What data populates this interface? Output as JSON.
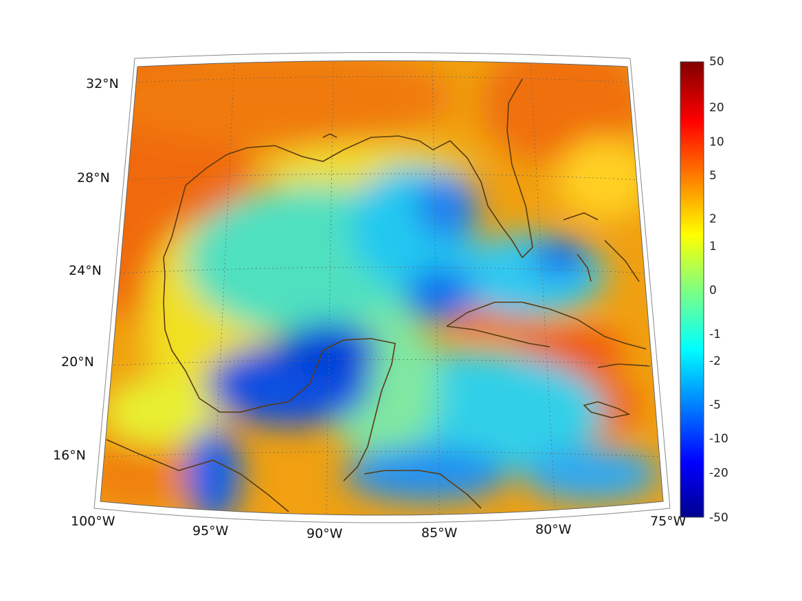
{
  "map": {
    "projection": "conic",
    "lon_range": [
      -100,
      -75
    ],
    "lat_range": [
      14,
      33
    ],
    "lon_ticks": [
      {
        "value": -100,
        "label": "100°W"
      },
      {
        "value": -95,
        "label": "95°W"
      },
      {
        "value": -90,
        "label": "90°W"
      },
      {
        "value": -85,
        "label": "85°W"
      },
      {
        "value": -80,
        "label": "80°W"
      },
      {
        "value": -75,
        "label": "75°W"
      }
    ],
    "lat_ticks": [
      {
        "value": 32,
        "label": "32°N"
      },
      {
        "value": 28,
        "label": "28°N"
      },
      {
        "value": 24,
        "label": "24°N"
      },
      {
        "value": 20,
        "label": "20°N"
      },
      {
        "value": 16,
        "label": "16°N"
      }
    ],
    "grid": true,
    "colormap": "jet",
    "coastline_color": "#5a3a10"
  },
  "colorbar": {
    "labels": [
      "50",
      "20",
      "10",
      "5",
      "2",
      "1",
      "0",
      "-1",
      "-2",
      "-5",
      "-10",
      "-20",
      "-50"
    ],
    "top_color": "#800000",
    "bottom_color": "#00008f"
  }
}
